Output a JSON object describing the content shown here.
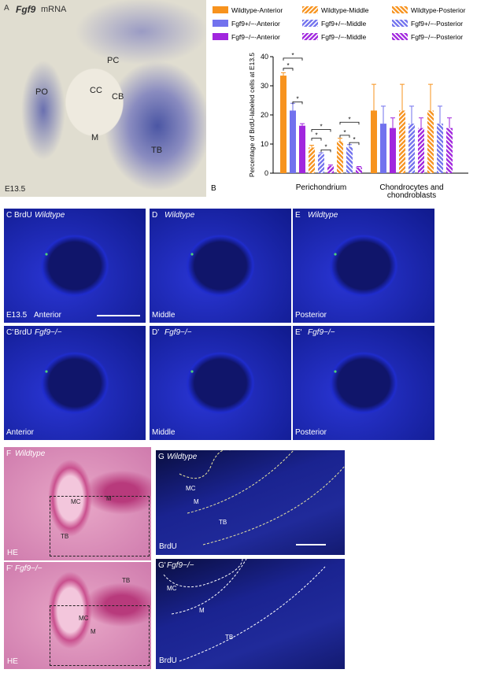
{
  "panel_a": {
    "letter": "A",
    "gene": "Fgf9",
    "probe": "mRNA",
    "stage": "E13.5",
    "labels": [
      "PC",
      "CC",
      "CB",
      "PO",
      "M",
      "TB"
    ]
  },
  "chart_data": {
    "type": "bar",
    "letter": "B",
    "y_label": "Percentage of BrdU-labeled cells at E13.5",
    "categories": [
      "Perichondrium",
      "Chondrocytes and chondroblasts"
    ],
    "ylim": [
      0,
      40
    ],
    "yticks": [
      0,
      10,
      20,
      30,
      40
    ],
    "series": [
      {
        "name": "Wildtype-Anterior",
        "color": "#f7931e",
        "hatch": "none",
        "values": [
          33.5,
          21.5
        ],
        "errors": [
          1,
          9
        ]
      },
      {
        "name": "Fgf9+/−-Anterior",
        "color": "#7272ee",
        "hatch": "none",
        "values": [
          21.5,
          17
        ],
        "errors": [
          2.5,
          6
        ]
      },
      {
        "name": "Fgf9−/−-Anterior",
        "color": "#a126de",
        "hatch": "none",
        "values": [
          16.3,
          15.5
        ],
        "errors": [
          0.7,
          3.5
        ]
      },
      {
        "name": "Wildtype-Middle",
        "color": "#f7931e",
        "hatch": "forward",
        "values": [
          8.8,
          21.5
        ],
        "errors": [
          0.8,
          9
        ]
      },
      {
        "name": "Fgf9+/−-Middle",
        "color": "#7272ee",
        "hatch": "forward",
        "values": [
          6.5,
          17
        ],
        "errors": [
          0.5,
          6
        ]
      },
      {
        "name": "Fgf9−/−-Middle",
        "color": "#a126de",
        "hatch": "forward",
        "values": [
          2.5,
          15.5
        ],
        "errors": [
          0.3,
          3.5
        ]
      },
      {
        "name": "Wildtype-Posterior",
        "color": "#f7931e",
        "hatch": "backward",
        "values": [
          11,
          21.5
        ],
        "errors": [
          1,
          9
        ]
      },
      {
        "name": "Fgf9+/−-Posterior",
        "color": "#7272ee",
        "hatch": "backward",
        "values": [
          9,
          17
        ],
        "errors": [
          0.8,
          6
        ]
      },
      {
        "name": "Fgf9−/−-Posterior",
        "color": "#a126de",
        "hatch": "backward",
        "values": [
          2,
          15.5
        ],
        "errors": [
          0.3,
          3.5
        ]
      }
    ],
    "significance": [
      "*",
      "*",
      "*",
      "*",
      "*",
      "*",
      "*",
      "*",
      "*"
    ]
  },
  "brdu_panels": [
    {
      "letter": "C",
      "stain": "BrdU",
      "genotype": "Wildtype",
      "stage": "E13.5",
      "region": "Anterior"
    },
    {
      "letter": "D",
      "genotype": "Wildtype",
      "region": "Middle"
    },
    {
      "letter": "E",
      "genotype": "Wildtype",
      "region": "Posterior"
    },
    {
      "letter": "C'",
      "stain": "BrdU",
      "genotype": "Fgf9−/−",
      "region": "Anterior"
    },
    {
      "letter": "D'",
      "genotype": "Fgf9−/−",
      "region": "Middle"
    },
    {
      "letter": "E'",
      "genotype": "Fgf9−/−",
      "region": "Posterior"
    }
  ],
  "he_panels": [
    {
      "letter": "F",
      "genotype": "Wildtype",
      "stain": "HE",
      "labels": [
        "MC",
        "M",
        "TB"
      ]
    },
    {
      "letter": "F'",
      "genotype": "Fgf9−/−",
      "stain": "HE",
      "labels": [
        "MC",
        "M",
        "TB"
      ]
    }
  ],
  "g_panels": [
    {
      "letter": "G",
      "genotype": "Wildtype",
      "stain": "BrdU",
      "labels": [
        "MC",
        "M",
        "TB"
      ]
    },
    {
      "letter": "G'",
      "genotype": "Fgf9−/−",
      "stain": "BrdU",
      "labels": [
        "MC",
        "M",
        "TB"
      ]
    }
  ]
}
